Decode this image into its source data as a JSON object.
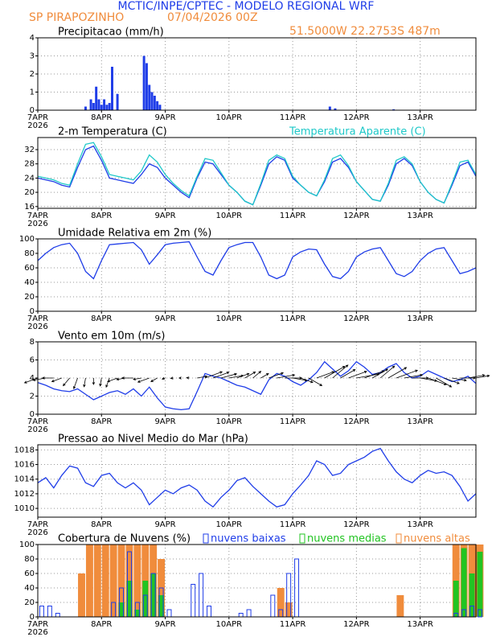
{
  "header": {
    "title": "MCTIC/INPE/CPTEC - MODELO REGIONAL WRF",
    "station": "SP PIRAPOZINHO",
    "run": "07/04/2026 00Z",
    "location": "51.5000W 22.2753S 487m"
  },
  "time": {
    "xlim": [
      0,
      165
    ],
    "xticks": [
      {
        "value": 0,
        "label": "7APR"
      },
      {
        "value": 24,
        "label": "8APR"
      },
      {
        "value": 48,
        "label": "9APR"
      },
      {
        "value": 72,
        "label": "10APR"
      },
      {
        "value": 96,
        "label": "11APR"
      },
      {
        "value": 120,
        "label": "12APR"
      },
      {
        "value": 144,
        "label": "13APR"
      }
    ],
    "year": "2026",
    "x": [
      0,
      3,
      6,
      9,
      12,
      15,
      18,
      21,
      24,
      27,
      30,
      33,
      36,
      39,
      42,
      45,
      48,
      51,
      54,
      57,
      60,
      63,
      66,
      69,
      72,
      75,
      78,
      81,
      84,
      87,
      90,
      93,
      96,
      99,
      102,
      105,
      108,
      111,
      114,
      117,
      120,
      123,
      126,
      129,
      132,
      135,
      138,
      141,
      144,
      147,
      150,
      153,
      156,
      159,
      162,
      165
    ]
  },
  "chart_data": [
    {
      "type": "bar",
      "title": "Precipitacao (mm/h)",
      "color": "#1f3de8",
      "ylim": [
        0,
        4
      ],
      "yticks": [
        0,
        1,
        2,
        3,
        4
      ],
      "x": [
        18,
        20,
        21,
        22,
        23,
        24,
        25,
        26,
        27,
        28,
        30,
        40,
        41,
        42,
        43,
        44,
        45,
        46,
        110,
        112,
        134
      ],
      "values": [
        0.2,
        0.6,
        0.4,
        1.3,
        0.6,
        0.3,
        0.6,
        0.3,
        0.4,
        2.4,
        0.9,
        3.0,
        2.6,
        1.4,
        1.0,
        0.8,
        0.5,
        0.3,
        0.2,
        0.1,
        0.05
      ]
    },
    {
      "type": "line",
      "ylim": [
        15.5,
        35.4
      ],
      "yticks": [
        16,
        20,
        24,
        28,
        32
      ],
      "series": [
        {
          "name": "2-m Temperatura (C)",
          "color": "#1f3de8",
          "values": [
            24,
            23.5,
            23,
            22,
            21.5,
            27,
            32,
            33,
            29,
            24,
            23.5,
            23,
            22.5,
            25,
            28,
            27,
            24,
            22,
            20,
            18.5,
            24,
            28.5,
            28,
            25,
            22,
            20,
            17.5,
            16.5,
            22,
            28,
            30,
            29,
            24,
            22,
            20,
            19,
            23,
            28.5,
            29.5,
            27,
            23,
            20.5,
            18,
            17.5,
            22,
            28,
            29.5,
            27.5,
            23,
            20,
            18,
            17,
            22,
            27.5,
            28.5,
            24.5
          ]
        },
        {
          "name": "Temperatura Aparente (C)",
          "color": "#1ec8c8",
          "values": [
            24.5,
            24,
            23.5,
            22.5,
            22,
            28,
            33.5,
            34,
            30,
            25,
            24.5,
            24,
            23.5,
            26,
            30.5,
            28.5,
            25,
            22.5,
            20.5,
            19,
            24.5,
            29.5,
            29,
            25.5,
            22,
            20,
            17.5,
            16.5,
            22.5,
            29,
            30.5,
            29.5,
            24.5,
            22,
            20,
            19,
            23.5,
            29.5,
            30.5,
            27.5,
            23,
            20.5,
            18,
            17.5,
            22.5,
            29,
            30,
            28,
            23,
            20,
            18,
            17,
            22.5,
            28.5,
            29,
            25
          ]
        }
      ]
    },
    {
      "type": "line",
      "title": "Umidade Relativa em 2m (%)",
      "color": "#1f3de8",
      "ylim": [
        0,
        100
      ],
      "yticks": [
        0,
        20,
        40,
        60,
        80,
        100
      ],
      "values": [
        70,
        80,
        88,
        92,
        94,
        80,
        55,
        45,
        70,
        92,
        93,
        94,
        95,
        85,
        65,
        78,
        92,
        94,
        95,
        96,
        75,
        55,
        50,
        70,
        88,
        92,
        95,
        95,
        75,
        50,
        45,
        50,
        75,
        82,
        86,
        85,
        65,
        48,
        45,
        55,
        75,
        82,
        86,
        88,
        70,
        52,
        48,
        55,
        70,
        80,
        86,
        88,
        70,
        52,
        55,
        60
      ]
    },
    {
      "type": "wind",
      "title": "Vento em 10m (m/s)",
      "color": "#1f3de8",
      "ylim": [
        0,
        8
      ],
      "yticks": [
        0,
        2,
        4,
        6,
        8
      ],
      "values": [
        3.5,
        3.2,
        2.8,
        2.6,
        2.5,
        2.8,
        2.2,
        1.6,
        2.0,
        2.4,
        2.6,
        2.2,
        2.8,
        2.0,
        3.0,
        1.8,
        0.8,
        0.6,
        0.5,
        0.6,
        2.5,
        4.5,
        4.2,
        4.0,
        3.6,
        3.2,
        3.0,
        2.6,
        2.2,
        3.8,
        4.5,
        4.2,
        3.6,
        3.2,
        3.8,
        4.6,
        5.8,
        5.0,
        4.2,
        4.8,
        5.8,
        5.2,
        4.4,
        4.6,
        5.2,
        5.6,
        4.6,
        4.0,
        4.2,
        4.8,
        4.4,
        4.0,
        3.6,
        3.8,
        4.2,
        3.4
      ],
      "directions": [
        200,
        190,
        180,
        200,
        230,
        250,
        260,
        270,
        260,
        250,
        200,
        190,
        180,
        190,
        200,
        210,
        200,
        190,
        180,
        170,
        10,
        20,
        20,
        15,
        10,
        20,
        30,
        40,
        30,
        20,
        10,
        0,
        350,
        340,
        330,
        20,
        30,
        40,
        30,
        20,
        10,
        20,
        30,
        40,
        30,
        20,
        10,
        0,
        350,
        340,
        330,
        340,
        350,
        0,
        10,
        10
      ]
    },
    {
      "type": "line",
      "title": "Pressao ao Nivel Medio do Mar (hPa)",
      "color": "#1f3de8",
      "ylim": [
        1008.8,
        1018.7
      ],
      "yticks": [
        1010,
        1012,
        1014,
        1016,
        1018
      ],
      "values": [
        1013.5,
        1014.2,
        1012.8,
        1014.5,
        1015.8,
        1015.5,
        1013.5,
        1013.0,
        1014.5,
        1014.8,
        1013.5,
        1012.8,
        1013.5,
        1012.5,
        1010.5,
        1011.5,
        1012.5,
        1012.0,
        1012.8,
        1013.2,
        1012.5,
        1011.0,
        1010.2,
        1011.5,
        1012.5,
        1013.8,
        1014.2,
        1013.0,
        1012.0,
        1011.0,
        1010.2,
        1010.5,
        1012.0,
        1013.2,
        1014.5,
        1016.5,
        1016.0,
        1014.5,
        1014.8,
        1016.0,
        1016.5,
        1017.0,
        1017.8,
        1018.2,
        1016.5,
        1015.0,
        1014.0,
        1013.5,
        1014.5,
        1015.2,
        1014.8,
        1015.0,
        1014.5,
        1013.0,
        1011.0,
        1012.0
      ]
    },
    {
      "type": "bar",
      "title": "Cobertura de Nuvens (%)",
      "ylim": [
        0,
        100
      ],
      "yticks": [
        0,
        20,
        40,
        60,
        80,
        100
      ],
      "series": [
        {
          "name": "nuvens altas",
          "color": "#f08c3c",
          "values": [
            0,
            0,
            0,
            0,
            0,
            60,
            100,
            100,
            100,
            100,
            100,
            100,
            100,
            100,
            100,
            80,
            0,
            0,
            0,
            0,
            0,
            0,
            0,
            0,
            0,
            0,
            0,
            0,
            0,
            0,
            40,
            20,
            0,
            0,
            0,
            0,
            0,
            0,
            0,
            0,
            0,
            0,
            0,
            0,
            0,
            30,
            0,
            0,
            0,
            0,
            0,
            0,
            100,
            100,
            100,
            100
          ]
        },
        {
          "name": "nuvens medias",
          "color": "#22c422",
          "values": [
            0,
            0,
            0,
            0,
            0,
            0,
            0,
            0,
            0,
            0,
            20,
            50,
            10,
            50,
            60,
            30,
            0,
            0,
            0,
            0,
            0,
            0,
            0,
            0,
            0,
            0,
            0,
            0,
            0,
            0,
            0,
            0,
            0,
            0,
            0,
            0,
            0,
            0,
            0,
            0,
            0,
            0,
            0,
            0,
            0,
            0,
            0,
            0,
            0,
            0,
            0,
            0,
            50,
            95,
            60,
            90
          ]
        },
        {
          "name": "nuvens baixas",
          "color": "#1f3de8",
          "values": [
            15,
            15,
            5,
            0,
            0,
            0,
            0,
            0,
            0,
            20,
            40,
            90,
            20,
            30,
            60,
            40,
            10,
            0,
            0,
            45,
            60,
            15,
            0,
            0,
            0,
            5,
            10,
            0,
            0,
            30,
            10,
            60,
            80,
            0,
            0,
            0,
            0,
            0,
            0,
            0,
            0,
            0,
            0,
            0,
            0,
            0,
            0,
            0,
            0,
            0,
            0,
            0,
            5,
            10,
            15,
            10
          ]
        }
      ]
    }
  ]
}
